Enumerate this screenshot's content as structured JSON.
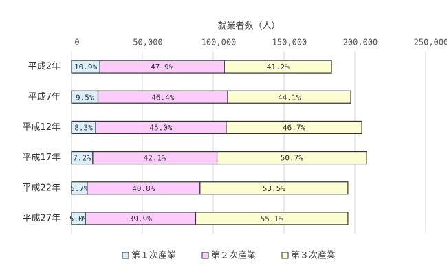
{
  "chart_data": {
    "type": "stacked_bar_horizontal",
    "title": "就業者数（人）",
    "categories": [
      "平成2年",
      "平成7年",
      "平成12年",
      "平成17年",
      "平成22年",
      "平成27年"
    ],
    "series": [
      {
        "name": "第１次産業",
        "color": "#d9eff9",
        "values": [
          20000,
          18700,
          17000,
          15000,
          11100,
          9800
        ],
        "labels": [
          "10.9%",
          "9.5%",
          "8.3%",
          "7.2%",
          "5.7%",
          "5.0%"
        ]
      },
      {
        "name": "第２次産業",
        "color": "#fccdfb",
        "values": [
          87900,
          91500,
          92200,
          87700,
          79600,
          77800
        ],
        "labels": [
          "47.9%",
          "46.4%",
          "45.0%",
          "42.1%",
          "40.8%",
          "39.9%"
        ]
      },
      {
        "name": "第３次産業",
        "color": "#fdfdd2",
        "values": [
          75600,
          86900,
          95700,
          105600,
          104400,
          107500
        ],
        "labels": [
          "41.2%",
          "44.1%",
          "46.7%",
          "50.7%",
          "53.5%",
          "55.1%"
        ]
      }
    ],
    "xlim": [
      0,
      250000
    ],
    "xticks": [
      0,
      {
        "value": 50000,
        "label": "50,000"
      },
      {
        "value": 100000,
        "label": "100,000"
      },
      {
        "value": 150000,
        "label": "150,000"
      },
      {
        "value": 200000,
        "label": "200,000"
      },
      {
        "value": 250000,
        "label": "250,000"
      }
    ],
    "grid": true
  }
}
